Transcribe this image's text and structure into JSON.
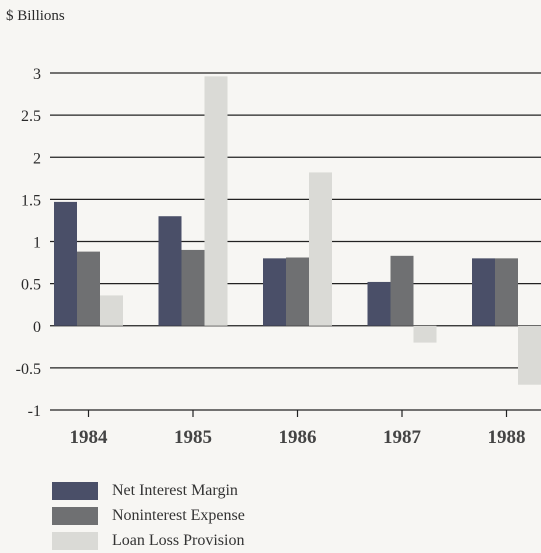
{
  "chart_data": {
    "type": "bar",
    "unit_label": "$ Billions",
    "categories": [
      "1984",
      "1985",
      "1986",
      "1987",
      "1988"
    ],
    "ylim": [
      -1,
      3
    ],
    "yticks": [
      "3",
      "2.5",
      "2",
      "1.5",
      "1",
      "0.5",
      "0",
      "-0.5",
      "-1"
    ],
    "grid": true,
    "legend_position": "bottom-left",
    "series": [
      {
        "name": "Net Interest Margin",
        "color": "#4a4f68",
        "values": [
          1.47,
          1.3,
          0.8,
          0.52,
          0.8
        ]
      },
      {
        "name": "Noninterest Expense",
        "color": "#6f7072",
        "values": [
          0.88,
          0.9,
          0.81,
          0.83,
          0.8
        ]
      },
      {
        "name": "Loan Loss Provision",
        "color": "#dadad6",
        "values": [
          0.36,
          2.96,
          1.82,
          -0.2,
          -0.7
        ]
      }
    ]
  }
}
